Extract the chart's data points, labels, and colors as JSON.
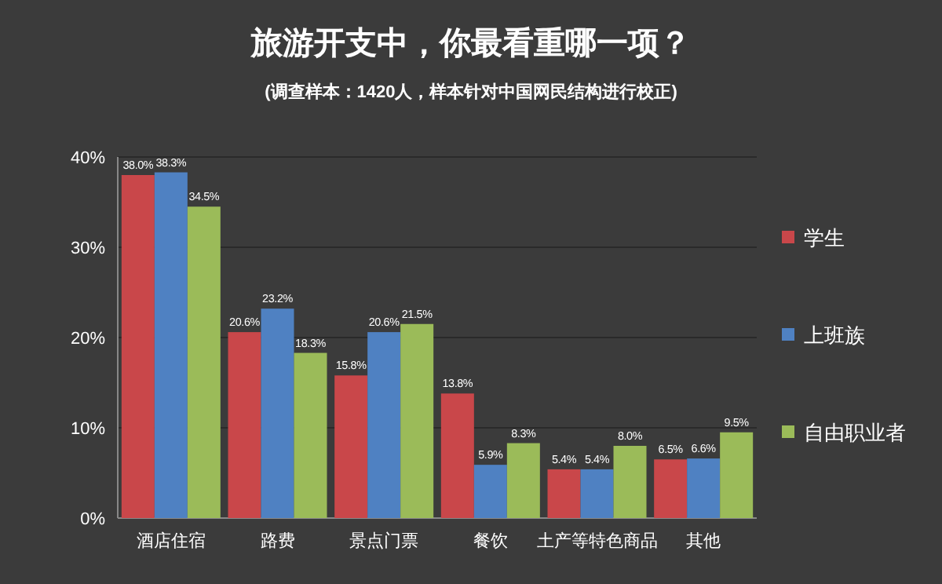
{
  "chart_data": {
    "type": "bar",
    "title": "旅游开支中，你最看重哪一项？",
    "subtitle": "(调查样本：1420人，样本针对中国网民结构进行校正)",
    "categories": [
      "酒店住宿",
      "路费",
      "景点门票",
      "餐饮",
      "土产等特色商品",
      "其他"
    ],
    "series": [
      {
        "name": "学生",
        "color": "#c9474a",
        "values": [
          38.0,
          20.6,
          15.8,
          13.8,
          5.4,
          6.5
        ],
        "value_labels": [
          "38.0%",
          "20.6%",
          "15.8%",
          "13.8%",
          "5.4%",
          "6.5%"
        ]
      },
      {
        "name": "上班族",
        "color": "#4f81c2",
        "values": [
          38.3,
          23.2,
          20.6,
          5.9,
          5.4,
          6.6
        ],
        "value_labels": [
          "38.3%",
          "23.2%",
          "20.6%",
          "5.9%",
          "5.4%",
          "6.6%"
        ]
      },
      {
        "name": "自由职业者",
        "color": "#9bbb59",
        "values": [
          34.5,
          18.3,
          21.5,
          8.3,
          8.0,
          9.5
        ],
        "value_labels": [
          "34.5%",
          "18.3%",
          "21.5%",
          "8.3%",
          "8.0%",
          "9.5%"
        ]
      }
    ],
    "ylim": [
      0,
      40
    ],
    "yticks": [
      {
        "value": 0,
        "label": "0%"
      },
      {
        "value": 10,
        "label": "10%"
      },
      {
        "value": 20,
        "label": "20%"
      },
      {
        "value": 30,
        "label": "30%"
      },
      {
        "value": 40,
        "label": "40%"
      }
    ],
    "grid": "y",
    "legend": "right"
  }
}
